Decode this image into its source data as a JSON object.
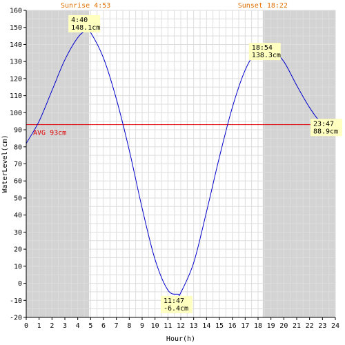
{
  "chart_data": {
    "type": "line",
    "xlabel": "Hour(h)",
    "ylabel": "WaterLevel(cm)",
    "xlim": [
      0,
      24
    ],
    "ylim": [
      -20,
      160
    ],
    "x_ticks": [
      0,
      1,
      2,
      3,
      4,
      5,
      6,
      7,
      8,
      9,
      10,
      11,
      12,
      13,
      14,
      15,
      16,
      17,
      18,
      19,
      20,
      21,
      22,
      23,
      24
    ],
    "y_ticks": [
      -20,
      -10,
      0,
      10,
      20,
      30,
      40,
      50,
      60,
      70,
      80,
      90,
      100,
      110,
      120,
      130,
      140,
      150,
      160
    ],
    "grid": true,
    "sunrise": {
      "label": "Sunrise 4:53",
      "hour": 4.883
    },
    "sunset": {
      "label": "Sunset 18:22",
      "hour": 18.367
    },
    "night_shading": true,
    "average": {
      "label": "AVG 93cm",
      "value": 93
    },
    "annotations": [
      {
        "time": "4:40",
        "level": "148.1cm",
        "x": 4.667,
        "y": 148.1
      },
      {
        "time": "11:47",
        "level": "-6.4cm",
        "x": 11.783,
        "y": -6.4
      },
      {
        "time": "18:54",
        "level": "138.3cm",
        "x": 18.9,
        "y": 138.3
      },
      {
        "time": "23:47",
        "level": "88.9cm",
        "x": 23.783,
        "y": 88.9
      }
    ],
    "series": [
      {
        "x": [
          0,
          1,
          2,
          3,
          4,
          4.667,
          5,
          6,
          7,
          8,
          9,
          10,
          11,
          11.783,
          12,
          13,
          14,
          15,
          16,
          17,
          18,
          18.9,
          19,
          20,
          21,
          22,
          23,
          23.783,
          24
        ],
        "y": [
          82,
          95,
          113,
          131,
          144,
          148.1,
          147,
          132,
          108,
          78,
          44,
          14,
          -4,
          -6.4,
          -5.5,
          12,
          42,
          74,
          103,
          125,
          137,
          138.3,
          138,
          130,
          116,
          103,
          93,
          88.9,
          89
        ],
        "color": "#0000cc"
      }
    ],
    "colors": {
      "night": "#d3d3d3",
      "grid": "#dddddd",
      "line": "#0000cc",
      "avg": "#dd0000",
      "sun_label": "#e07000",
      "annotation_bg": "#ffffc0"
    }
  }
}
